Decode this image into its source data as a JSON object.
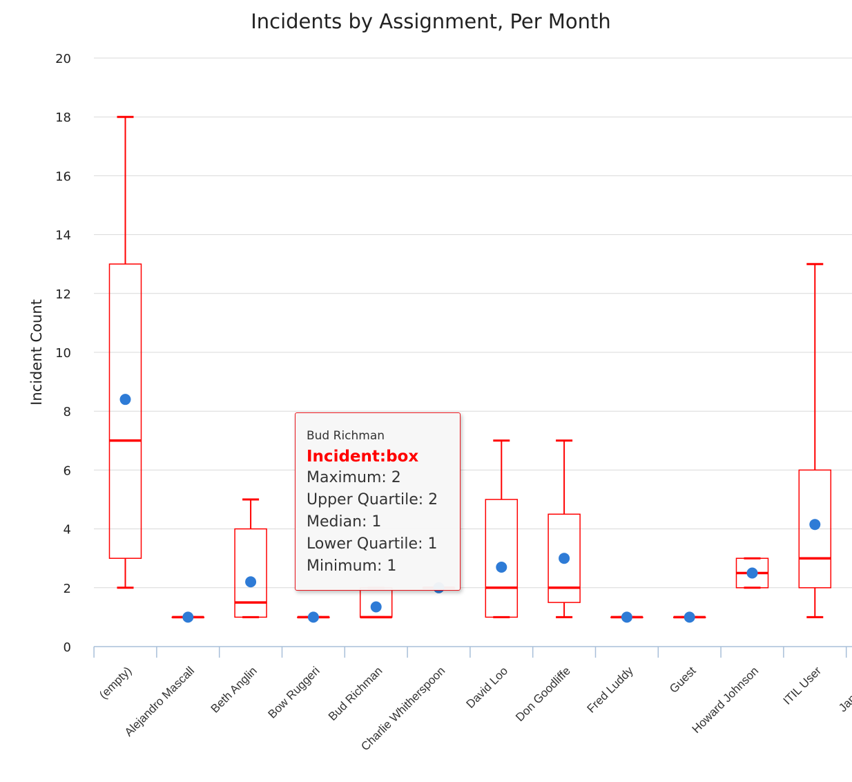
{
  "chart_data": {
    "type": "boxplot",
    "title": "Incidents by Assignment, Per Month",
    "xlabel": "",
    "ylabel": "Incident Count",
    "ylim": [
      0,
      20
    ],
    "yticks": [
      0,
      2,
      4,
      6,
      8,
      10,
      12,
      14,
      16,
      18,
      20
    ],
    "grid": true,
    "categories": [
      "(empty)",
      "Alejandro Mascall",
      "Beth Anglin",
      "Bow Ruggeri",
      "Bud Richman",
      "Charlie Whitherspoon",
      "David Loo",
      "Don Goodliffe",
      "Fred Luddy",
      "Guest",
      "Howard Johnson",
      "ITIL User",
      "Jannie Bov"
    ],
    "series": [
      {
        "name": "Incident",
        "colors": {
          "box": "#ff0000",
          "mean": "#2e7bd6"
        },
        "boxes": [
          {
            "min": 2,
            "q1": 3,
            "median": 7,
            "q3": 13,
            "max": 18,
            "mean": 8.4
          },
          {
            "min": 1,
            "q1": 1,
            "median": 1,
            "q3": 1,
            "max": 1,
            "mean": 1
          },
          {
            "min": 1,
            "q1": 1,
            "median": 1.5,
            "q3": 4,
            "max": 5,
            "mean": 2.2
          },
          {
            "min": 1,
            "q1": 1,
            "median": 1,
            "q3": 1,
            "max": 1,
            "mean": 1
          },
          {
            "min": 1,
            "q1": 1,
            "median": 1,
            "q3": 2,
            "max": 2,
            "mean": 1.35
          },
          {
            "min": 2,
            "q1": 2,
            "median": 2,
            "q3": 2,
            "max": 2,
            "mean": 2
          },
          {
            "min": 1,
            "q1": 1,
            "median": 2,
            "q3": 5,
            "max": 7,
            "mean": 2.7
          },
          {
            "min": 1,
            "q1": 1.5,
            "median": 2,
            "q3": 4.5,
            "max": 7,
            "mean": 3
          },
          {
            "min": 1,
            "q1": 1,
            "median": 1,
            "q3": 1,
            "max": 1,
            "mean": 1
          },
          {
            "min": 1,
            "q1": 1,
            "median": 1,
            "q3": 1,
            "max": 1,
            "mean": 1
          },
          {
            "min": 2,
            "q1": 2,
            "median": 2.5,
            "q3": 3,
            "max": 3,
            "mean": 2.5
          },
          {
            "min": 1,
            "q1": 2,
            "median": 3,
            "q3": 6,
            "max": 13,
            "mean": 4.15
          },
          {
            "min": null,
            "q1": null,
            "median": null,
            "q3": null,
            "max": null,
            "mean": null
          }
        ]
      }
    ],
    "tooltip": {
      "category": "Bud Richman",
      "series_label": "Incident:box",
      "lines": [
        "Maximum: 2",
        "Upper Quartile: 2",
        "Median: 1",
        "Lower Quartile: 1",
        "Minimum: 1"
      ]
    }
  }
}
